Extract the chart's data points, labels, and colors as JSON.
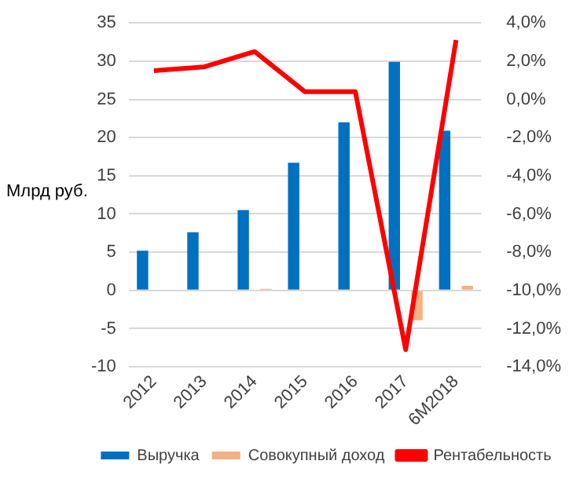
{
  "chart_data": {
    "type": "bar",
    "ylabel": "Млрд руб.",
    "categories": [
      "2012",
      "2013",
      "2014",
      "2015",
      "2016",
      "2017",
      "6M2018"
    ],
    "series": [
      {
        "name": "Выручка",
        "color": "#0070c0",
        "values": [
          5.2,
          7.6,
          10.5,
          16.7,
          22,
          29.9,
          20.9
        ]
      },
      {
        "name": "Совокупный доход",
        "color": "#f4b183",
        "values": [
          0,
          0,
          0.2,
          0,
          0,
          -3.9,
          0.6
        ]
      },
      {
        "name": "Рентабельность",
        "type": "line",
        "axis": "y2",
        "color": "#ff0000",
        "values": [
          1.5,
          1.7,
          2.5,
          0.4,
          0.4,
          -13.1,
          3.1
        ]
      }
    ],
    "ylim": [
      -10,
      35
    ],
    "yticks": [
      -10,
      -5,
      0,
      5,
      10,
      15,
      20,
      25,
      30,
      35
    ],
    "y2lim": [
      -14,
      4
    ],
    "y2ticks": [
      {
        "value": -14,
        "label": "-14,0%"
      },
      {
        "value": -12,
        "label": "-12,0%"
      },
      {
        "value": -10,
        "label": "-10,0%"
      },
      {
        "value": -8,
        "label": "-8,0%"
      },
      {
        "value": -6,
        "label": "-6,0%"
      },
      {
        "value": -4,
        "label": "-4,0%"
      },
      {
        "value": -2,
        "label": "-2,0%"
      },
      {
        "value": 0,
        "label": "0,0%"
      },
      {
        "value": 2,
        "label": "2,0%"
      },
      {
        "value": 4,
        "label": "4,0%"
      }
    ],
    "grid": "y",
    "legend": "bottom",
    "marker": "none"
  }
}
